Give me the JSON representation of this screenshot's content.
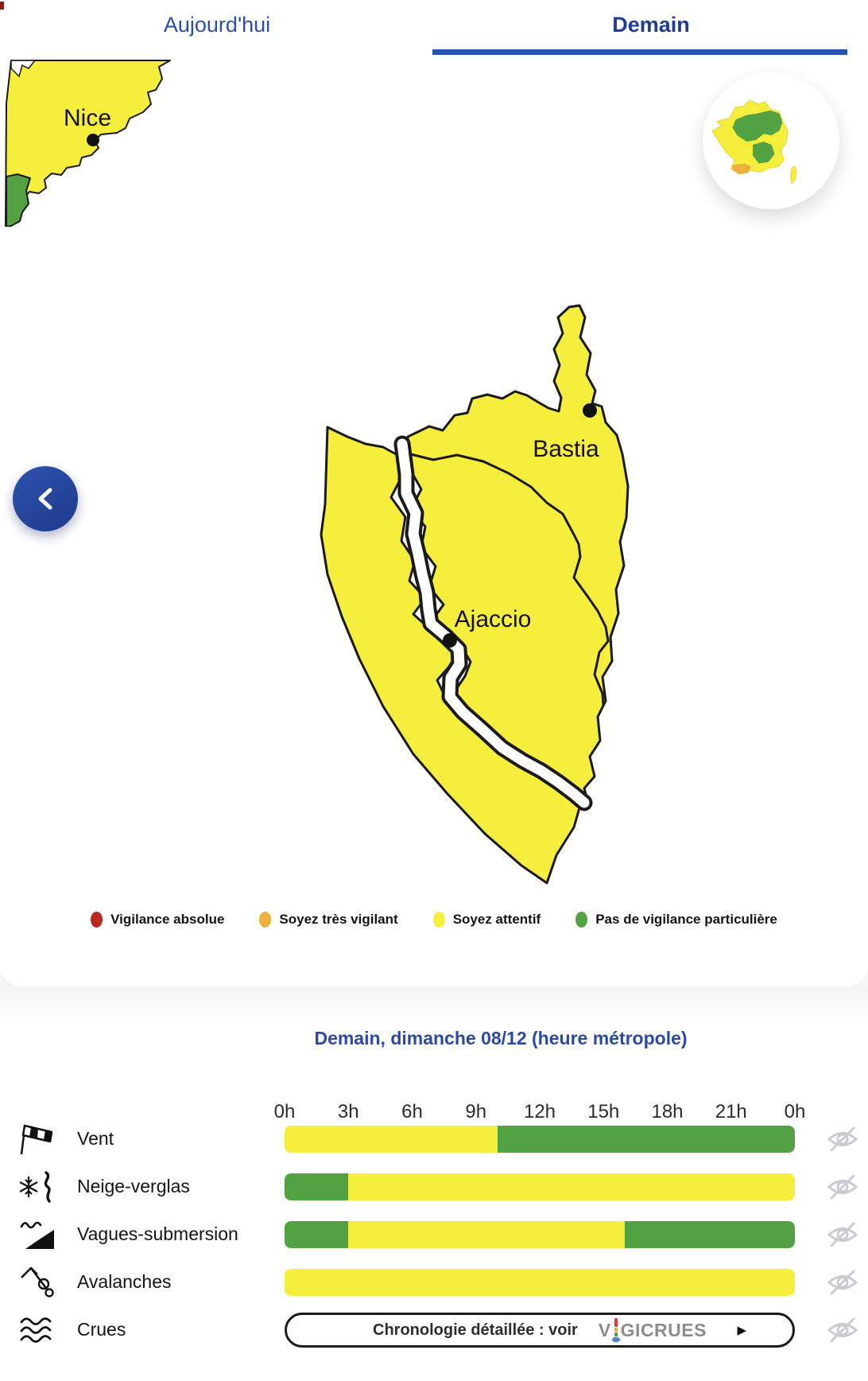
{
  "tabs": {
    "today_label": "Aujourd'hui",
    "tomorrow_label": "Demain",
    "active": "tomorrow",
    "accent_color": "#2B50B4"
  },
  "overview_map": {
    "nice_label": "Nice",
    "bastia_label": "Bastia",
    "ajaccio_label": "Ajaccio"
  },
  "vigilance_colors": {
    "red": "#B9281E",
    "orange": "#EEAF41",
    "yellow": "#F6EE3C",
    "green": "#52A243"
  },
  "legend": {
    "items": [
      {
        "label": "Vigilance absolue",
        "color": "#B9281E"
      },
      {
        "label": "Soyez très vigilant",
        "color": "#EEAF41"
      },
      {
        "label": "Soyez attentif",
        "color": "#F6EE3C"
      },
      {
        "label": "Pas de vigilance particulière",
        "color": "#52A243"
      }
    ]
  },
  "timeline": {
    "title": "Demain, dimanche 08/12 (heure métropole)",
    "hours": [
      "0h",
      "3h",
      "6h",
      "9h",
      "12h",
      "15h",
      "18h",
      "21h",
      "0h"
    ],
    "total_hours": 24,
    "rows": [
      {
        "label": "Vent",
        "icon": "windsock-icon",
        "segments": [
          {
            "from": 0,
            "to": 10,
            "color": "#F6EE3C"
          },
          {
            "from": 10,
            "to": 24,
            "color": "#52A243"
          }
        ]
      },
      {
        "label": "Neige-verglas",
        "icon": "snow-ice-icon",
        "segments": [
          {
            "from": 0,
            "to": 3,
            "color": "#52A243"
          },
          {
            "from": 3,
            "to": 24,
            "color": "#F6EE3C"
          }
        ]
      },
      {
        "label": "Vagues-submersion",
        "icon": "wave-submersion-icon",
        "segments": [
          {
            "from": 0,
            "to": 3,
            "color": "#52A243"
          },
          {
            "from": 3,
            "to": 16,
            "color": "#F6EE3C"
          },
          {
            "from": 16,
            "to": 24,
            "color": "#52A243"
          }
        ]
      },
      {
        "label": "Avalanches",
        "icon": "avalanche-icon",
        "segments": [
          {
            "from": 0,
            "to": 24,
            "color": "#F6EE3C"
          }
        ]
      },
      {
        "label": "Crues",
        "icon": "flood-icon",
        "button": {
          "label": "Chronologie détaillée : voir",
          "logo_text": "VIGICRUES",
          "arrow": "▶"
        }
      }
    ]
  }
}
